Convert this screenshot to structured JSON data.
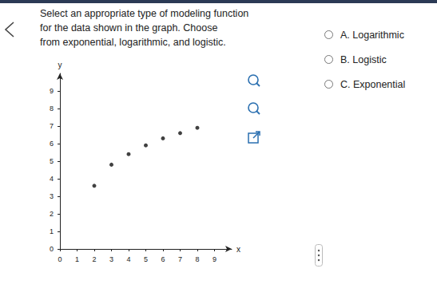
{
  "question": [
    "Select an appropriate type of modeling function",
    "for the data shown in the graph. Choose",
    "from exponential, logarithmic, and logistic."
  ],
  "options": [
    "A. Logarithmic",
    "B. Logistic",
    "C. Exponential"
  ],
  "chart_data": {
    "type": "scatter",
    "x_label": "x",
    "y_label": "y",
    "x": [
      2,
      3,
      4,
      5,
      6,
      7,
      8
    ],
    "values": [
      3.6,
      4.8,
      5.4,
      5.9,
      6.3,
      6.6,
      6.9
    ],
    "color": "#111111",
    "marker": "circle",
    "xlim": [
      0,
      10
    ],
    "xticks": [
      0,
      1,
      2,
      3,
      4,
      5,
      6,
      7,
      8,
      9
    ],
    "ylim": [
      0,
      10
    ],
    "yticks": [
      0,
      1,
      2,
      3,
      4,
      5,
      6,
      7,
      8,
      9
    ],
    "grid": false
  }
}
